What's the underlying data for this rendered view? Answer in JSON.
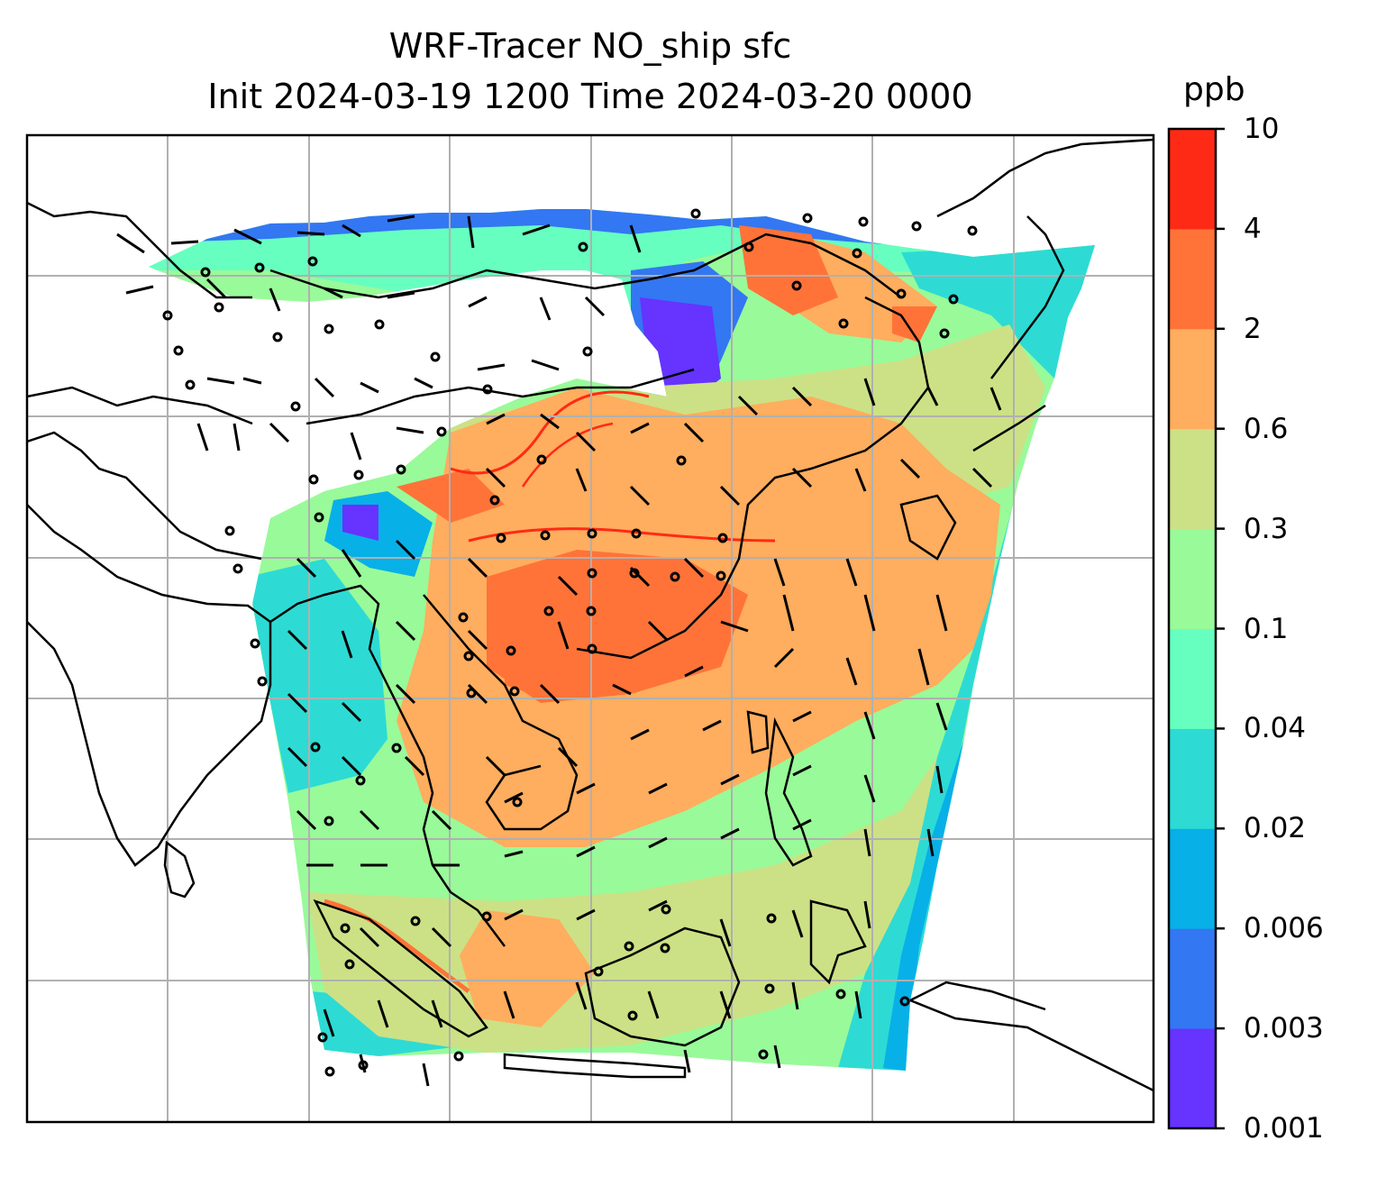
{
  "figure": {
    "title_line1": "WRF-Tracer NO_ship sfc",
    "title_line2": "Init 2024-03-19 1200 Time 2024-03-20 0000"
  },
  "colorbar": {
    "unit": "ppb",
    "tick_labels": [
      "0.001",
      "0.003",
      "0.006",
      "0.02",
      "0.04",
      "0.1",
      "0.3",
      "0.6",
      "2",
      "4",
      "10"
    ],
    "colors": [
      "#6633ff",
      "#3377f2",
      "#08b0e8",
      "#2ddbd4",
      "#66ffbf",
      "#99fa99",
      "#cce185",
      "#ffad5e",
      "#ff7338",
      "#ff2a15"
    ]
  },
  "map_colors": {
    "ocean_background": "#ffffff",
    "coastline": "#000000",
    "gridline": "#b0b0b0",
    "wind_barb": "#000000"
  }
}
